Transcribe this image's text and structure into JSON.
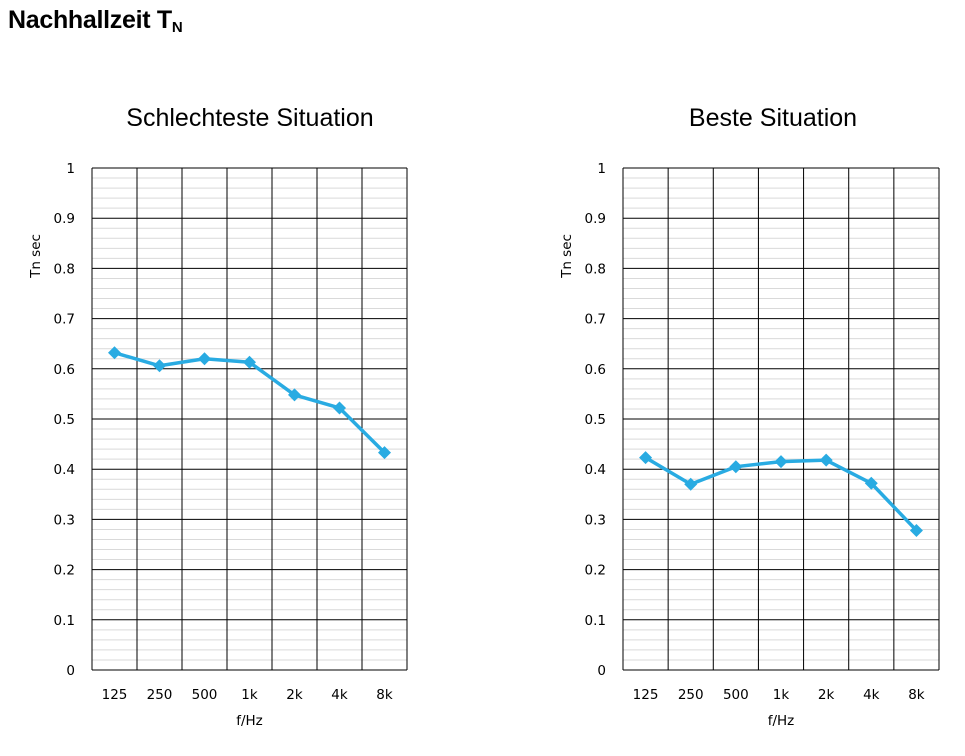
{
  "page": {
    "title_main": "Nachhallzeit T",
    "title_sub": "N"
  },
  "chart_data": [
    {
      "type": "line",
      "title": "Schlechteste Situation",
      "categories": [
        "125",
        "250",
        "500",
        "1k",
        "2k",
        "4k",
        "8k"
      ],
      "series": [
        {
          "values": [
            0.632,
            0.606,
            0.62,
            0.613,
            0.548,
            0.522,
            0.433
          ],
          "color": "#29abe2"
        }
      ],
      "xlabel": "f/Hz",
      "ylabel": "Tn  sec",
      "ylim": [
        0,
        1
      ],
      "yticks": [
        "0",
        "0.1",
        "0.2",
        "0.3",
        "0.4",
        "0.5",
        "0.6",
        "0.7",
        "0.8",
        "0.9",
        "1"
      ],
      "grid": true,
      "marker": "diamond"
    },
    {
      "type": "line",
      "title": "Beste Situation",
      "categories": [
        "125",
        "250",
        "500",
        "1k",
        "2k",
        "4k",
        "8k"
      ],
      "series": [
        {
          "values": [
            0.423,
            0.37,
            0.405,
            0.415,
            0.418,
            0.372,
            0.278
          ],
          "color": "#29abe2"
        }
      ],
      "xlabel": "f/Hz",
      "ylabel": "Tn  sec",
      "ylim": [
        0,
        1
      ],
      "yticks": [
        "0",
        "0.1",
        "0.2",
        "0.3",
        "0.4",
        "0.5",
        "0.6",
        "0.7",
        "0.8",
        "0.9",
        "1"
      ],
      "grid": true,
      "marker": "diamond"
    }
  ]
}
